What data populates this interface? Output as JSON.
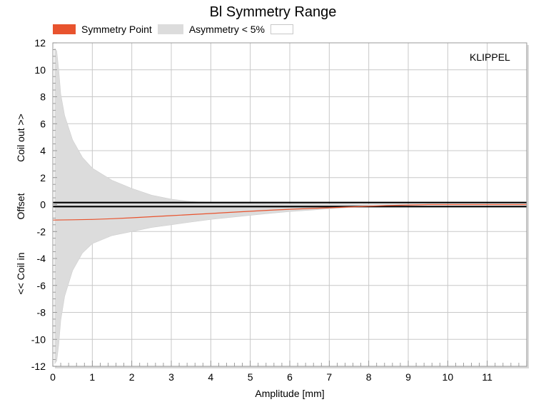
{
  "chart_data": {
    "type": "area",
    "title": "Bl Symmetry Range",
    "xlabel": "Amplitude [mm]",
    "ylabel_segments": [
      "Coil out >>",
      "Offset",
      "<< Coil in"
    ],
    "brand": "KLIPPEL",
    "xlim": [
      0,
      12
    ],
    "ylim": [
      -12,
      12
    ],
    "x_ticks": [
      0,
      1,
      2,
      3,
      4,
      5,
      6,
      7,
      8,
      9,
      10,
      11
    ],
    "y_ticks": [
      -12,
      -10,
      -8,
      -6,
      -4,
      -2,
      0,
      2,
      4,
      6,
      8,
      10,
      12
    ],
    "grid": true,
    "legend": [
      {
        "label": "Symmetry Point",
        "color": "#e8532e"
      },
      {
        "label": "Asymmetry < 5%",
        "color": "#dcdcdc"
      },
      {
        "label": "",
        "color": "#ffffff"
      }
    ],
    "series": [
      {
        "name": "Symmetry Point",
        "x": [
          0.0,
          0.5,
          1.0,
          1.5,
          2.0,
          2.5,
          3.0,
          3.5,
          4.0,
          4.5,
          5.0,
          5.5,
          6.0,
          6.5,
          7.0,
          7.5,
          8.0,
          8.5,
          9.0,
          9.5,
          10.0,
          11.0,
          12.0
        ],
        "y": [
          -1.15,
          -1.13,
          -1.1,
          -1.05,
          -0.98,
          -0.9,
          -0.82,
          -0.74,
          -0.66,
          -0.58,
          -0.5,
          -0.42,
          -0.35,
          -0.29,
          -0.24,
          -0.18,
          -0.12,
          -0.07,
          -0.03,
          0.0,
          0.0,
          0.0,
          0.0
        ]
      },
      {
        "name": "Asymmetry < 5%",
        "x": [
          0.05,
          0.1,
          0.15,
          0.2,
          0.3,
          0.5,
          0.75,
          1.0,
          1.5,
          2.0,
          2.5,
          3.0,
          3.5,
          4.0,
          4.5,
          5.0,
          5.5,
          6.0,
          6.5,
          7.0,
          7.5,
          8.0,
          8.5,
          9.0
        ],
        "upper": [
          11.6,
          11.4,
          10.0,
          8.2,
          6.6,
          4.8,
          3.5,
          2.7,
          1.8,
          1.2,
          0.7,
          0.4,
          0.22,
          0.15,
          0.1,
          0.08,
          0.06,
          0.05,
          0.04,
          0.03,
          0.02,
          0.01,
          0.0,
          0.0
        ],
        "lower": [
          -11.8,
          -11.6,
          -10.4,
          -8.6,
          -6.8,
          -4.9,
          -3.6,
          -2.9,
          -2.3,
          -2.0,
          -1.7,
          -1.5,
          -1.3,
          -1.1,
          -0.95,
          -0.8,
          -0.65,
          -0.52,
          -0.42,
          -0.32,
          -0.22,
          -0.13,
          -0.06,
          -0.01
        ]
      }
    ],
    "reference_lines": [
      -0.15,
      0.15
    ],
    "colors": {
      "symmetry": "#e8532e",
      "asymmetry_fill": "#dcdcdc",
      "grid": "#c8c8c8",
      "frame": "#999999",
      "ref_line": "#000000"
    }
  }
}
